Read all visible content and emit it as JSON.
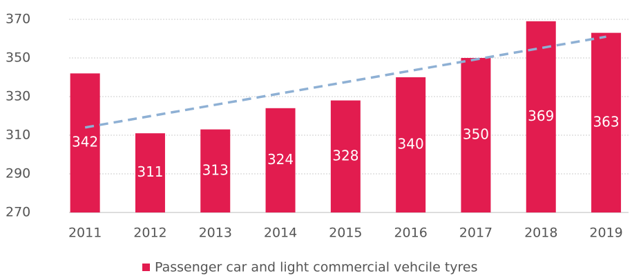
{
  "chart_data": {
    "type": "bar",
    "categories": [
      "2011",
      "2012",
      "2013",
      "2014",
      "2015",
      "2016",
      "2017",
      "2018",
      "2019"
    ],
    "series": [
      {
        "name": "Passenger car and light commercial vehcile tyres",
        "color": "#e21c4f",
        "values": [
          342,
          311,
          313,
          324,
          328,
          340,
          350,
          369,
          363
        ]
      }
    ],
    "trendline": {
      "color": "#8eb0d4",
      "values": [
        314,
        361
      ]
    },
    "ylim": [
      270,
      370
    ],
    "yticks": [
      270,
      290,
      310,
      330,
      350,
      370
    ],
    "grid": true,
    "legend": "bottom"
  }
}
